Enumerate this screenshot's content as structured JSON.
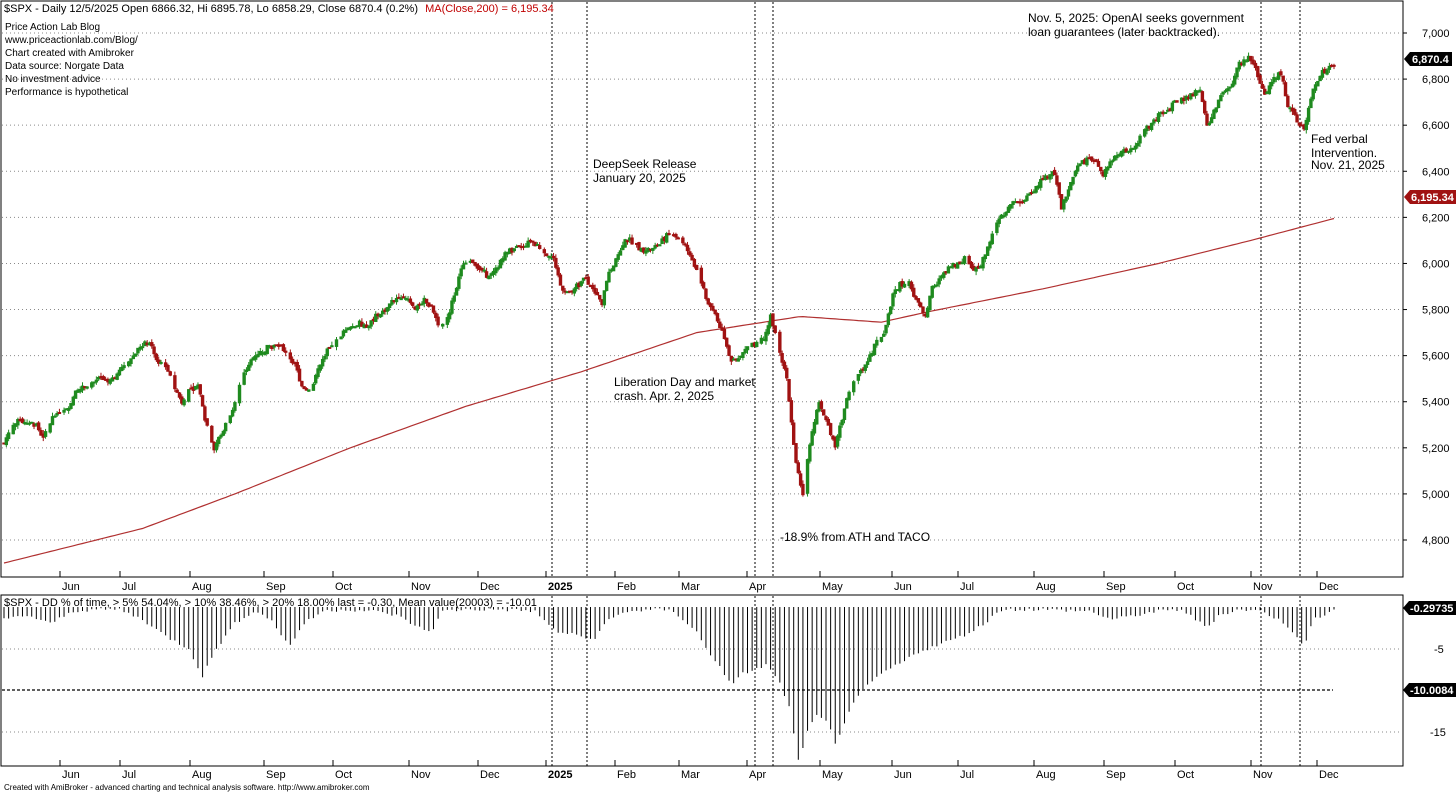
{
  "header": {
    "symbol": "$SPX",
    "title_line": "$SPX - Daily 12/5/2025 Open 6866.32, Hi 6895.78, Lo 6858.29, Close 6870.4 (0.2%)",
    "ma_label": "MA(Close,200) = 6,195.34"
  },
  "info_lines": [
    "Price Action Lab Blog",
    "www.priceactionlab.com/Blog/",
    "Chart created with Amibroker",
    "Data source: Norgate Data",
    "No investment advice",
    "Performance is hypothetical"
  ],
  "annotations": {
    "openai": [
      "Nov. 5, 2025: OpenAI seeks government",
      "loan guarantees (later backtracked)."
    ],
    "deepseek": [
      "DeepSeek Release",
      "January 20, 2025"
    ],
    "liberation": [
      "Liberation Day and market",
      "crash. Apr. 2, 2025"
    ],
    "ath": "-18.9% from ATH and TACO",
    "fed": [
      "Fed verbal",
      "Intervention.",
      "Nov. 21, 2025"
    ]
  },
  "bottom_pane": {
    "title": "$SPX - DD % of time,  > 5% 54.04%, > 10% 38.46%, > 20% 18.00%  last   = -0.30,   Mean value(20003) = -10.01",
    "last_label": "-0.29735",
    "mean_label": "-10.0084",
    "y_ticks": [
      "-5",
      "-15"
    ]
  },
  "footer": "Created with AmiBroker - advanced charting and technical analysis software. http://www.amibroker.com",
  "colors": {
    "up": "#1f8a1f",
    "down": "#a01212",
    "ma": "#b03030",
    "last_box": "#000000",
    "ma_box": "#a01212"
  },
  "chart_data": [
    {
      "type": "candlestick",
      "title": "$SPX - Daily 12/5/2025 Open 6866.32, Hi 6895.78, Lo 6858.29, Close 6870.4 (0.2%)",
      "ylim": [
        4700,
        7150
      ],
      "y_ticks": [
        4800,
        5000,
        5200,
        5400,
        5600,
        5800,
        6000,
        6200,
        6400,
        6600,
        6800,
        7000
      ],
      "y_tick_labels": [
        "4,800",
        "5,000",
        "5,200",
        "5,400",
        "5,600",
        "5,800",
        "6,000",
        "6,200",
        "6,400",
        "6,600",
        "6,800",
        "7,000"
      ],
      "x_tick_labels": [
        "Jun",
        "Jul",
        "Aug",
        "Sep",
        "Oct",
        "Nov",
        "Dec",
        "2025",
        "Feb",
        "Mar",
        "Apr",
        "May",
        "Jun",
        "Jul",
        "Aug",
        "Sep",
        "Oct",
        "Nov",
        "Dec"
      ],
      "last_close": 6870.4,
      "last_close_label": "6,870.4",
      "ma_last": 6195.34,
      "ma_last_label": "6,195.34",
      "close_path": [
        [
          0,
          5220
        ],
        [
          3,
          5290
        ],
        [
          7,
          5320
        ],
        [
          10,
          5310
        ],
        [
          14,
          5300
        ],
        [
          17,
          5240
        ],
        [
          21,
          5330
        ],
        [
          24,
          5360
        ],
        [
          28,
          5380
        ],
        [
          31,
          5440
        ],
        [
          35,
          5470
        ],
        [
          38,
          5480
        ],
        [
          42,
          5500
        ],
        [
          45,
          5480
        ],
        [
          49,
          5520
        ],
        [
          52,
          5560
        ],
        [
          56,
          5600
        ],
        [
          59,
          5640
        ],
        [
          63,
          5660
        ],
        [
          66,
          5580
        ],
        [
          70,
          5560
        ],
        [
          73,
          5480
        ],
        [
          77,
          5400
        ],
        [
          80,
          5450
        ],
        [
          84,
          5470
        ],
        [
          87,
          5330
        ],
        [
          91,
          5200
        ],
        [
          94,
          5260
        ],
        [
          98,
          5340
        ],
        [
          101,
          5440
        ],
        [
          105,
          5540
        ],
        [
          108,
          5600
        ],
        [
          112,
          5620
        ],
        [
          115,
          5640
        ],
        [
          119,
          5640
        ],
        [
          122,
          5620
        ],
        [
          126,
          5560
        ],
        [
          129,
          5470
        ],
        [
          133,
          5440
        ],
        [
          136,
          5540
        ],
        [
          140,
          5620
        ],
        [
          143,
          5650
        ],
        [
          147,
          5700
        ],
        [
          150,
          5720
        ],
        [
          154,
          5740
        ],
        [
          157,
          5720
        ],
        [
          161,
          5770
        ],
        [
          164,
          5790
        ],
        [
          168,
          5830
        ],
        [
          171,
          5860
        ],
        [
          175,
          5850
        ],
        [
          178,
          5810
        ],
        [
          182,
          5840
        ],
        [
          185,
          5810
        ],
        [
          189,
          5720
        ],
        [
          192,
          5760
        ],
        [
          196,
          5900
        ],
        [
          199,
          6000
        ],
        [
          203,
          6010
        ],
        [
          206,
          5980
        ],
        [
          210,
          5940
        ],
        [
          213,
          5970
        ],
        [
          217,
          6040
        ],
        [
          220,
          6060
        ],
        [
          224,
          6070
        ],
        [
          227,
          6090
        ],
        [
          231,
          6080
        ],
        [
          234,
          6050
        ],
        [
          238,
          6020
        ],
        [
          241,
          5900
        ],
        [
          245,
          5870
        ],
        [
          248,
          5900
        ],
        [
          252,
          5940
        ],
        [
          255,
          5880
        ],
        [
          259,
          5830
        ],
        [
          262,
          5960
        ],
        [
          266,
          6040
        ],
        [
          269,
          6110
        ],
        [
          273,
          6090
        ],
        [
          276,
          6060
        ],
        [
          280,
          6060
        ],
        [
          283,
          6080
        ],
        [
          287,
          6120
        ],
        [
          290,
          6130
        ],
        [
          294,
          6090
        ],
        [
          297,
          6040
        ],
        [
          301,
          5950
        ],
        [
          304,
          5850
        ],
        [
          308,
          5780
        ],
        [
          311,
          5700
        ],
        [
          315,
          5580
        ],
        [
          318,
          5580
        ],
        [
          322,
          5640
        ],
        [
          325,
          5650
        ],
        [
          329,
          5680
        ],
        [
          332,
          5770
        ],
        [
          336,
          5610
        ],
        [
          339,
          5500
        ],
        [
          343,
          5130
        ],
        [
          346,
          5000
        ],
        [
          350,
          5280
        ],
        [
          353,
          5390
        ],
        [
          357,
          5290
        ],
        [
          360,
          5200
        ],
        [
          364,
          5370
        ],
        [
          367,
          5480
        ],
        [
          371,
          5530
        ],
        [
          374,
          5580
        ],
        [
          378,
          5660
        ],
        [
          381,
          5690
        ],
        [
          385,
          5860
        ],
        [
          388,
          5910
        ],
        [
          392,
          5920
        ],
        [
          395,
          5840
        ],
        [
          399,
          5780
        ],
        [
          402,
          5890
        ],
        [
          406,
          5940
        ],
        [
          409,
          5980
        ],
        [
          413,
          6000
        ],
        [
          416,
          6020
        ],
        [
          420,
          5980
        ],
        [
          423,
          5990
        ],
        [
          427,
          6090
        ],
        [
          430,
          6180
        ],
        [
          434,
          6230
        ],
        [
          437,
          6260
        ],
        [
          441,
          6260
        ],
        [
          444,
          6300
        ],
        [
          448,
          6340
        ],
        [
          451,
          6380
        ],
        [
          455,
          6390
        ],
        [
          458,
          6240
        ],
        [
          462,
          6350
        ],
        [
          465,
          6420
        ],
        [
          469,
          6450
        ],
        [
          472,
          6450
        ],
        [
          476,
          6380
        ],
        [
          479,
          6430
        ],
        [
          483,
          6480
        ],
        [
          486,
          6490
        ],
        [
          490,
          6500
        ],
        [
          493,
          6580
        ],
        [
          497,
          6600
        ],
        [
          500,
          6640
        ],
        [
          504,
          6660
        ],
        [
          507,
          6700
        ],
        [
          511,
          6710
        ],
        [
          514,
          6730
        ],
        [
          518,
          6750
        ],
        [
          521,
          6590
        ],
        [
          525,
          6680
        ],
        [
          528,
          6740
        ],
        [
          532,
          6780
        ],
        [
          535,
          6870
        ],
        [
          539,
          6890
        ],
        [
          542,
          6850
        ],
        [
          546,
          6730
        ],
        [
          549,
          6790
        ],
        [
          553,
          6830
        ],
        [
          556,
          6690
        ],
        [
          560,
          6620
        ],
        [
          563,
          6580
        ],
        [
          567,
          6760
        ],
        [
          570,
          6820
        ],
        [
          574,
          6850
        ],
        [
          576,
          6870
        ]
      ],
      "ma_path": [
        [
          0,
          4700
        ],
        [
          60,
          4850
        ],
        [
          100,
          5000
        ],
        [
          150,
          5200
        ],
        [
          200,
          5380
        ],
        [
          250,
          5530
        ],
        [
          300,
          5700
        ],
        [
          345,
          5770
        ],
        [
          380,
          5745
        ],
        [
          400,
          5790
        ],
        [
          450,
          5890
        ],
        [
          500,
          6000
        ],
        [
          540,
          6100
        ],
        [
          576,
          6195
        ]
      ]
    },
    {
      "type": "bar",
      "title": "$SPX - DD % of time,  > 5% 54.04%, > 10% 38.46%, > 20% 18.00%  last   = -0.30,   Mean value(20003) = -10.01",
      "ylim": [
        -18,
        0
      ],
      "y_ticks": [
        -5,
        -15
      ],
      "last": -0.29735,
      "mean": -10.0084,
      "dd_path": [
        [
          0,
          -1.5
        ],
        [
          10,
          -1.0
        ],
        [
          20,
          -2.0
        ],
        [
          30,
          -0.5
        ],
        [
          40,
          -0.3
        ],
        [
          50,
          -0.3
        ],
        [
          60,
          -1.5
        ],
        [
          70,
          -3.5
        ],
        [
          80,
          -5.0
        ],
        [
          86,
          -8.3
        ],
        [
          92,
          -5.0
        ],
        [
          100,
          -2.0
        ],
        [
          108,
          -0.5
        ],
        [
          116,
          -1.5
        ],
        [
          120,
          -3.5
        ],
        [
          124,
          -4.5
        ],
        [
          130,
          -2.0
        ],
        [
          138,
          -0.5
        ],
        [
          148,
          -0.3
        ],
        [
          160,
          -0.5
        ],
        [
          170,
          -1.0
        ],
        [
          180,
          -2.5
        ],
        [
          185,
          -3.0
        ],
        [
          190,
          -0.5
        ],
        [
          200,
          -0.3
        ],
        [
          215,
          -0.3
        ],
        [
          230,
          -0.5
        ],
        [
          235,
          -2.0
        ],
        [
          240,
          -3.0
        ],
        [
          250,
          -3.5
        ],
        [
          255,
          -4.0
        ],
        [
          262,
          -1.5
        ],
        [
          270,
          -0.5
        ],
        [
          285,
          -0.3
        ],
        [
          290,
          -0.5
        ],
        [
          300,
          -3.0
        ],
        [
          305,
          -5.5
        ],
        [
          310,
          -7.0
        ],
        [
          315,
          -9.5
        ],
        [
          320,
          -8.0
        ],
        [
          330,
          -7.0
        ],
        [
          335,
          -8.5
        ],
        [
          340,
          -12.0
        ],
        [
          344,
          -18.5
        ],
        [
          348,
          -15.0
        ],
        [
          352,
          -13.0
        ],
        [
          357,
          -14.0
        ],
        [
          360,
          -16.5
        ],
        [
          366,
          -12.5
        ],
        [
          372,
          -10.0
        ],
        [
          380,
          -8.0
        ],
        [
          390,
          -6.5
        ],
        [
          395,
          -5.5
        ],
        [
          405,
          -4.5
        ],
        [
          415,
          -3.5
        ],
        [
          425,
          -2.0
        ],
        [
          430,
          -0.5
        ],
        [
          437,
          -0.3
        ],
        [
          450,
          -0.3
        ],
        [
          470,
          -0.5
        ],
        [
          480,
          -1.5
        ],
        [
          490,
          -1.0
        ],
        [
          500,
          -0.5
        ],
        [
          510,
          -0.3
        ],
        [
          521,
          -2.5
        ],
        [
          526,
          -1.0
        ],
        [
          535,
          -0.3
        ],
        [
          545,
          -0.5
        ],
        [
          555,
          -2.0
        ],
        [
          560,
          -3.5
        ],
        [
          563,
          -5.0
        ],
        [
          567,
          -1.5
        ],
        [
          576,
          -0.3
        ]
      ]
    }
  ]
}
